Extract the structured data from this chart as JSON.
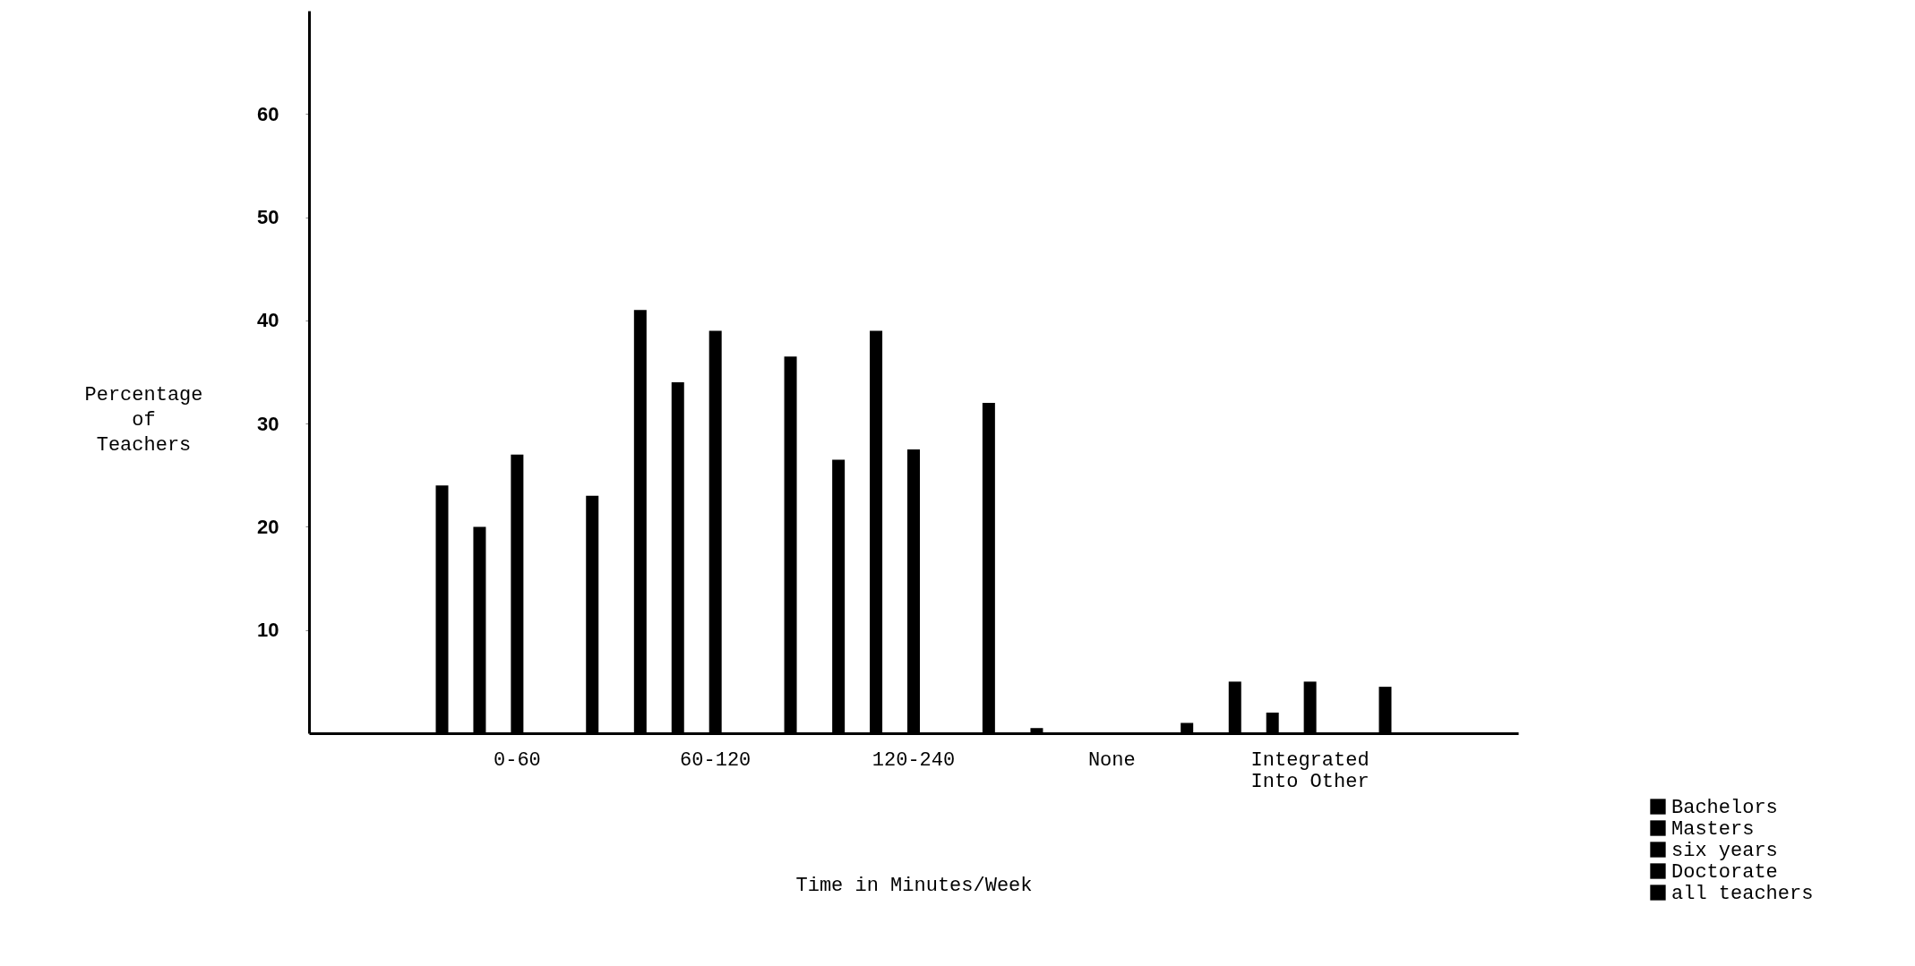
{
  "chart_data": {
    "type": "bar",
    "xlabel": "Time in Minutes/Week",
    "ylabel": "Percentage\nof\nTeachers",
    "categories": [
      "0-60",
      "60-120",
      "120-240",
      "None",
      "Integrated\nInto Other"
    ],
    "series": [
      {
        "name": "Bachelors",
        "color": "#000000",
        "values": [
          24,
          41,
          26.5,
          0.5,
          5
        ]
      },
      {
        "name": "Masters",
        "color": "#000000",
        "values": [
          20,
          34,
          39,
          0,
          2
        ]
      },
      {
        "name": "six years",
        "color": "#000000",
        "values": [
          27,
          39,
          27.5,
          0,
          5
        ]
      },
      {
        "name": "Doctorate",
        "color": "#000000",
        "values": [
          0,
          0,
          0,
          0,
          0
        ]
      },
      {
        "name": "all teachers",
        "color": "#000000",
        "values": [
          23,
          36.5,
          32,
          1,
          4.5
        ]
      }
    ],
    "ylim": [
      0,
      70
    ],
    "yticks": [
      10,
      20,
      30,
      40,
      50,
      60
    ],
    "grid": false,
    "legend": "bottom right"
  }
}
